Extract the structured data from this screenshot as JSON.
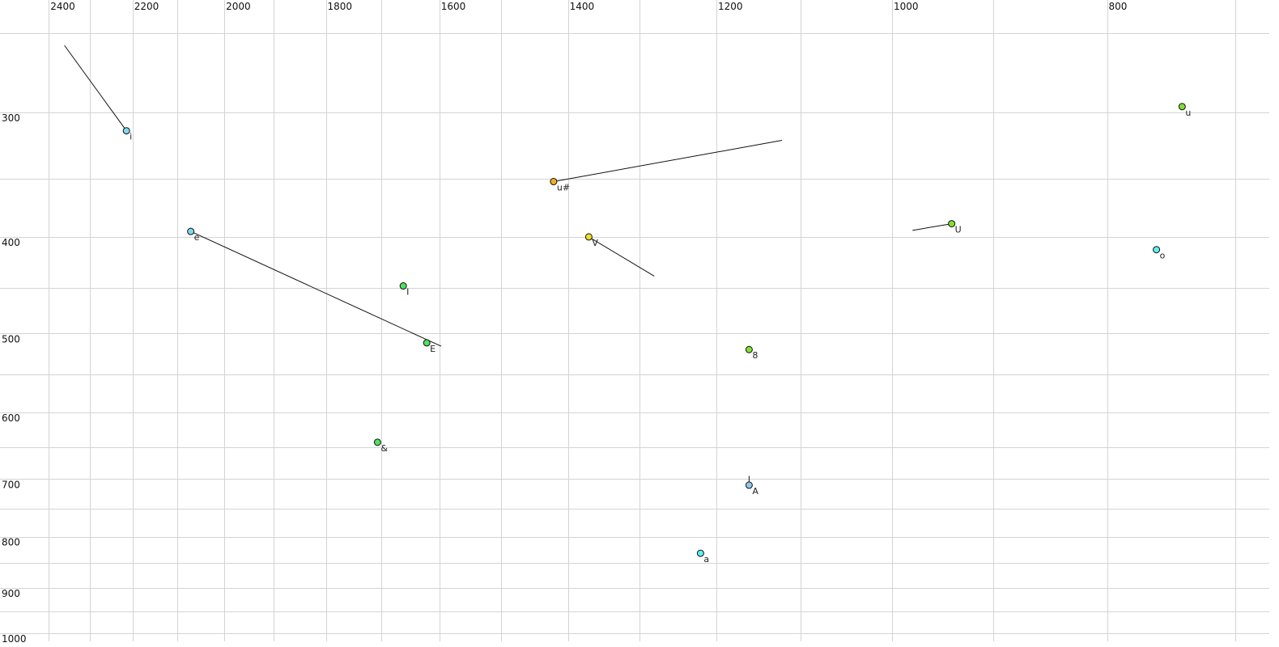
{
  "chart_data": {
    "type": "scatter",
    "title": "",
    "xlabel": "",
    "ylabel": "",
    "x_scale": "log",
    "y_scale": "log",
    "x_reversed": true,
    "y_reversed": true,
    "xlim": [
      2500,
      690
    ],
    "ylim": [
      250,
      1000
    ],
    "grid": true,
    "x_ticks": [
      2400,
      2200,
      2000,
      1800,
      1600,
      1400,
      1200,
      1000,
      800
    ],
    "x_gridlines": [
      2400,
      2300,
      2200,
      2100,
      2000,
      1900,
      1800,
      1700,
      1600,
      1500,
      1400,
      1300,
      1200,
      1100,
      1000,
      900,
      800,
      700
    ],
    "y_ticks": [
      300,
      400,
      500,
      600,
      700,
      800,
      900,
      1000
    ],
    "y_gridlines": [
      250,
      300,
      350,
      400,
      450,
      500,
      550,
      600,
      650,
      700,
      750,
      800,
      850,
      900,
      950,
      1000
    ],
    "points": [
      {
        "label": "i",
        "x": 2214,
        "y": 313,
        "color": "#80d8f0",
        "trail": [
          2361,
          257
        ]
      },
      {
        "label": "e",
        "x": 2071,
        "y": 395,
        "color": "#80d8f0",
        "trail": [
          1597,
          515
        ]
      },
      {
        "label": "I",
        "x": 1661,
        "y": 448,
        "color": "#50e060",
        "trail": null
      },
      {
        "label": "E",
        "x": 1621,
        "y": 511,
        "color": "#50e060",
        "trail": null
      },
      {
        "label": "&",
        "x": 1706,
        "y": 643,
        "color": "#50e060",
        "trail": null
      },
      {
        "label": "u#",
        "x": 1421,
        "y": 352,
        "color": "#f0b020",
        "trail": [
          1121,
          320
        ]
      },
      {
        "label": "V",
        "x": 1370,
        "y": 400,
        "color": "#f0e020",
        "trail": [
          1280,
          438
        ]
      },
      {
        "label": "8",
        "x": 1160,
        "y": 519,
        "color": "#80e030",
        "trail": null
      },
      {
        "label": "A",
        "x": 1160,
        "y": 710,
        "color": "#90c8f0",
        "trail": [
          1160,
          695
        ]
      },
      {
        "label": "a",
        "x": 1220,
        "y": 831,
        "color": "#60eef0",
        "trail": null
      },
      {
        "label": "U",
        "x": 940,
        "y": 388,
        "color": "#80e030",
        "trail": [
          979,
          394
        ]
      },
      {
        "label": "u",
        "x": 740,
        "y": 296,
        "color": "#80e030",
        "trail": null
      },
      {
        "label": "o",
        "x": 760,
        "y": 412,
        "color": "#60eef0",
        "trail": null
      }
    ]
  }
}
